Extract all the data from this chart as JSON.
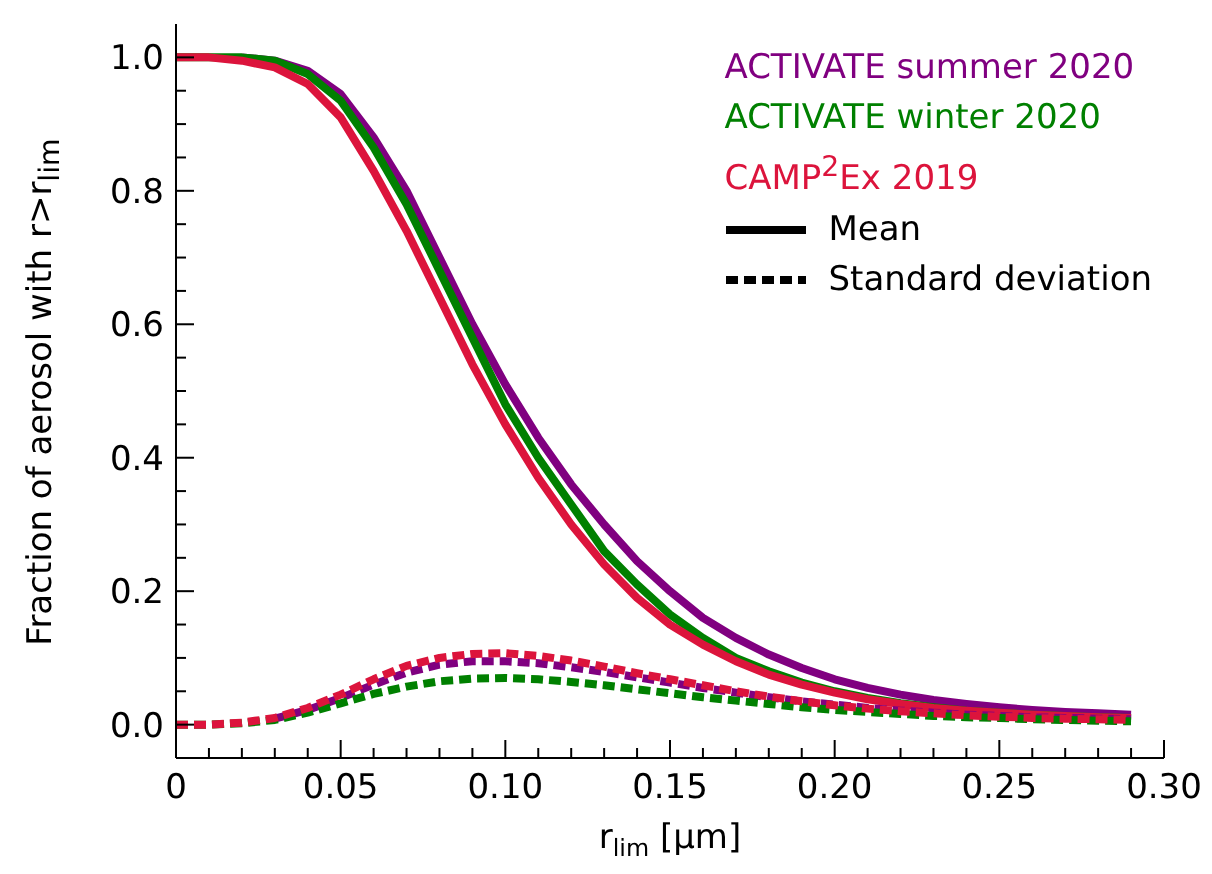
{
  "chart_data": {
    "type": "line",
    "xlabel": "r$_{lim}$ [μm]",
    "ylabel": "Fraction of aerosol with r>r$_{lim}$",
    "x": [
      0,
      0.01,
      0.02,
      0.03,
      0.04,
      0.05,
      0.06,
      0.07,
      0.08,
      0.09,
      0.1,
      0.11,
      0.12,
      0.13,
      0.14,
      0.15,
      0.16,
      0.17,
      0.18,
      0.19,
      0.2,
      0.21,
      0.22,
      0.23,
      0.24,
      0.25,
      0.26,
      0.27,
      0.28,
      0.29
    ],
    "series": [
      {
        "name": "ACTIVATE summer 2020",
        "color": "#800080",
        "line_style": "solid",
        "values": [
          null,
          null,
          1,
          0.995,
          0.98,
          0.945,
          0.88,
          0.8,
          0.7,
          0.6,
          0.51,
          0.43,
          0.36,
          0.3,
          0.245,
          0.2,
          0.16,
          0.13,
          0.105,
          0.085,
          0.068,
          0.055,
          0.045,
          0.037,
          0.031,
          0.026,
          0.022,
          0.019,
          0.017,
          0.015
        ]
      },
      {
        "name": "ACTIVATE winter 2020",
        "color": "#008000",
        "line_style": "solid",
        "values": [
          1,
          1,
          1,
          0.995,
          0.975,
          0.935,
          0.865,
          0.78,
          0.68,
          0.58,
          0.48,
          0.4,
          0.33,
          0.26,
          0.21,
          0.165,
          0.13,
          0.1,
          0.08,
          0.063,
          0.05,
          0.04,
          0.032,
          0.026,
          0.021,
          0.018,
          0.015,
          0.013,
          0.011,
          0.01
        ]
      },
      {
        "name": "CAMP$^{2}$Ex 2019",
        "color": "#dc143c",
        "line_style": "solid",
        "values": [
          1,
          1,
          0.995,
          0.985,
          0.96,
          0.91,
          0.83,
          0.74,
          0.64,
          0.54,
          0.45,
          0.37,
          0.3,
          0.24,
          0.19,
          0.15,
          0.12,
          0.095,
          0.075,
          0.06,
          0.048,
          0.038,
          0.031,
          0.025,
          0.021,
          0.018,
          0.015,
          0.013,
          0.011,
          0.01
        ]
      },
      {
        "color": "#800080",
        "line_style": "dashed",
        "values": [
          null,
          null,
          null,
          0.009,
          0.022,
          0.04,
          0.06,
          0.078,
          0.09,
          0.095,
          0.095,
          0.092,
          0.086,
          0.079,
          0.071,
          0.063,
          0.055,
          0.048,
          0.041,
          0.035,
          0.03,
          0.025,
          0.021,
          0.018,
          0.015,
          0.013,
          0.011,
          0.01,
          0.009,
          0.008
        ]
      },
      {
        "color": "#008000",
        "line_style": "dashed",
        "values": [
          0,
          0,
          0.002,
          0.007,
          0.018,
          0.032,
          0.046,
          0.057,
          0.065,
          0.069,
          0.07,
          0.068,
          0.064,
          0.059,
          0.053,
          0.047,
          0.041,
          0.036,
          0.031,
          0.026,
          0.022,
          0.019,
          0.016,
          0.013,
          0.011,
          0.01,
          0.008,
          0.007,
          0.006,
          0.005
        ]
      },
      {
        "color": "#dc143c",
        "line_style": "dashed",
        "values": [
          0,
          0,
          0.003,
          0.01,
          0.025,
          0.045,
          0.068,
          0.088,
          0.1,
          0.106,
          0.107,
          0.103,
          0.096,
          0.087,
          0.077,
          0.068,
          0.059,
          0.05,
          0.042,
          0.035,
          0.029,
          0.024,
          0.02,
          0.017,
          0.014,
          0.012,
          0.01,
          0.009,
          0.008,
          0.007
        ]
      }
    ],
    "annotations": [
      "Mean",
      "Standard deviation"
    ],
    "legend": "top right",
    "grid": false,
    "xlim": [
      0,
      0.3
    ],
    "xticks": [
      0,
      {
        "value": 0.01,
        "label": null
      },
      {
        "value": 0.02,
        "label": null
      },
      {
        "value": 0.03,
        "label": null
      },
      {
        "value": 0.04,
        "label": null
      },
      {
        "value": 0.05,
        "label": "0.05"
      },
      {
        "value": 0.06,
        "label": null
      },
      {
        "value": 0.07,
        "label": null
      },
      {
        "value": 0.08,
        "label": null
      },
      {
        "value": 0.09,
        "label": null
      },
      {
        "value": 0.1,
        "label": "0.10"
      },
      {
        "value": 0.11,
        "label": null
      },
      {
        "value": 0.12,
        "label": null
      },
      {
        "value": 0.13,
        "label": null
      },
      {
        "value": 0.14,
        "label": null
      },
      {
        "value": 0.15,
        "label": "0.15"
      },
      {
        "value": 0.16,
        "label": null
      },
      {
        "value": 0.17,
        "label": null
      },
      {
        "value": 0.18,
        "label": null
      },
      {
        "value": 0.19,
        "label": null
      },
      {
        "value": 0.2,
        "label": "0.20"
      },
      {
        "value": 0.21,
        "label": null
      },
      {
        "value": 0.22,
        "label": null
      },
      {
        "value": 0.23,
        "label": null
      },
      {
        "value": 0.24,
        "label": null
      },
      {
        "value": 0.25,
        "label": "0.25"
      },
      {
        "value": 0.26,
        "label": null
      },
      {
        "value": 0.27,
        "label": null
      },
      {
        "value": 0.28,
        "label": null
      },
      {
        "value": 0.29,
        "label": null
      },
      {
        "value": 0.3,
        "label": "0.30"
      }
    ],
    "ylim": [
      -0.05,
      1.05
    ],
    "yticks": [
      {
        "value": 0,
        "label": "0.0"
      },
      {
        "value": 0.05,
        "label": null
      },
      {
        "value": 0.1,
        "label": null
      },
      {
        "value": 0.15,
        "label": null
      },
      {
        "value": 0.2,
        "label": "0.2"
      },
      {
        "value": 0.25,
        "label": null
      },
      {
        "value": 0.3,
        "label": null
      },
      {
        "value": 0.35,
        "label": null
      },
      {
        "value": 0.4,
        "label": "0.4"
      },
      {
        "value": 0.45,
        "label": null
      },
      {
        "value": 0.5,
        "label": null
      },
      {
        "value": 0.55,
        "label": null
      },
      {
        "value": 0.6,
        "label": "0.6"
      },
      {
        "value": 0.65,
        "label": null
      },
      {
        "value": 0.7,
        "label": null
      },
      {
        "value": 0.75,
        "label": null
      },
      {
        "value": 0.8,
        "label": "0.8"
      },
      {
        "value": 0.85,
        "label": null
      },
      {
        "value": 0.9,
        "label": null
      },
      {
        "value": 0.95,
        "label": null
      },
      {
        "value": 1,
        "label": "1.0"
      }
    ]
  }
}
